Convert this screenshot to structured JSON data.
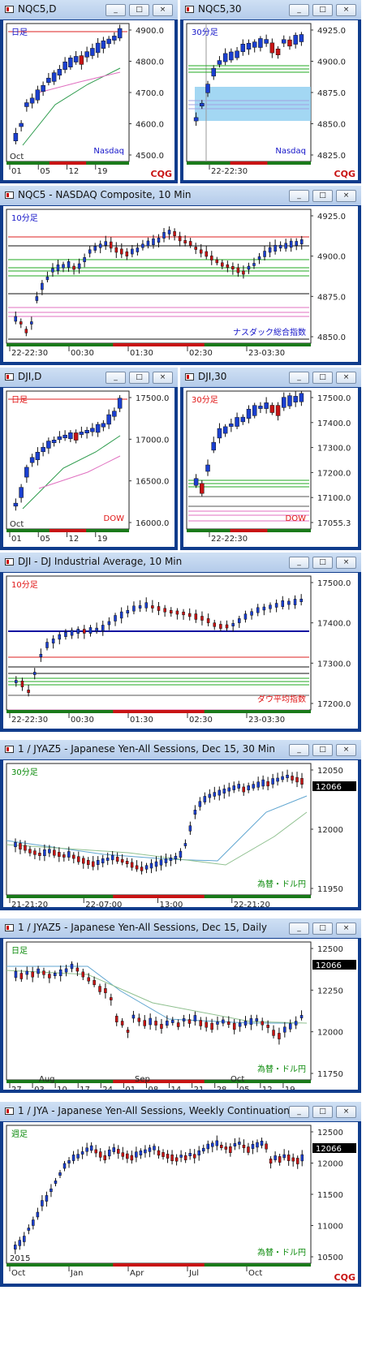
{
  "logo": "CQG",
  "panels": [
    {
      "id": "p1",
      "title": "NQC5,D",
      "corner_label": "日足",
      "corner_color": "#1414c8",
      "market_label": "Nasdaq",
      "market_color": "#1414c8",
      "y_ticks": [
        "4900.0",
        "4800.0",
        "4700.0",
        "4600.0",
        "4500.0"
      ],
      "x_ticks": [
        "01",
        "05",
        "12",
        "19"
      ],
      "x_top": "Oct",
      "price_tag": ""
    },
    {
      "id": "p2",
      "title": "NQC5,30",
      "corner_label": "30分足",
      "corner_color": "#1414c8",
      "market_label": "Nasdaq",
      "market_color": "#1414c8",
      "y_ticks": [
        "4925.0",
        "4900.0",
        "4875.0",
        "4850.0",
        "4825.0"
      ],
      "x_ticks": [
        "22-22:30"
      ],
      "x_top": "",
      "price_tag": ""
    },
    {
      "id": "p3",
      "title": "NQC5 - NASDAQ Composite, 10 Min",
      "corner_label": "10分足",
      "corner_color": "#1414c8",
      "market_label": "ナスダック総合指数",
      "market_color": "#1414c8",
      "y_ticks": [
        "4925.0",
        "4900.0",
        "4875.0",
        "4850.0"
      ],
      "x_ticks": [
        "22-22:30",
        "00:30",
        "01:30",
        "02:30",
        "23-03:30"
      ],
      "x_top": "",
      "price_tag": ""
    },
    {
      "id": "p4",
      "title": "DJI,D",
      "corner_label": "日足",
      "corner_color": "#e01414",
      "market_label": "DOW",
      "market_color": "#e01414",
      "y_ticks": [
        "17500.0",
        "17000.0",
        "16500.0",
        "16000.0"
      ],
      "x_ticks": [
        "01",
        "05",
        "12",
        "19"
      ],
      "x_top": "Oct",
      "price_tag": ""
    },
    {
      "id": "p5",
      "title": "DJI,30",
      "corner_label": "30分足",
      "corner_color": "#e01414",
      "market_label": "DOW",
      "market_color": "#e01414",
      "y_ticks": [
        "17500.0",
        "17400.0",
        "17300.0",
        "17200.0",
        "17100.0",
        "17055.3"
      ],
      "x_ticks": [
        "22-22:30"
      ],
      "x_top": "",
      "price_tag": ""
    },
    {
      "id": "p6",
      "title": "DJI - DJ Industrial Average, 10 Min",
      "corner_label": "10分足",
      "corner_color": "#e01414",
      "market_label": "ダウ平均指数",
      "market_color": "#e01414",
      "y_ticks": [
        "17500.0",
        "17400.0",
        "17300.0",
        "17200.0"
      ],
      "x_ticks": [
        "22-22:30",
        "00:30",
        "01:30",
        "02:30",
        "23-03:30"
      ],
      "x_top": "",
      "price_tag": ""
    },
    {
      "id": "p7",
      "title": "1 / JYAZ5 - Japanese Yen-All Sessions, Dec 15, 30 Min",
      "corner_label": "30分足",
      "corner_color": "#0a8a0a",
      "market_label": "為替・ドル円",
      "market_color": "#0a8a0a",
      "y_ticks": [
        "12050",
        "12000",
        "11950"
      ],
      "x_ticks": [
        "21-21:20",
        "22-07:00",
        "13:00",
        "22-21:20"
      ],
      "x_top": "",
      "price_tag": "12066"
    },
    {
      "id": "p8",
      "title": "1 / JYAZ5 - Japanese Yen-All Sessions, Dec 15, Daily",
      "corner_label": "日足",
      "corner_color": "#0a8a0a",
      "market_label": "為替・ドル円",
      "market_color": "#0a8a0a",
      "y_ticks": [
        "12500",
        "12250",
        "12000",
        "11750"
      ],
      "x_ticks": [
        "27",
        "03",
        "10",
        "17",
        "24",
        "01",
        "08",
        "14",
        "21",
        "28",
        "05",
        "12",
        "19"
      ],
      "x_top_multi": [
        "Aug",
        "Sep",
        "Oct"
      ],
      "price_tag": "12066"
    },
    {
      "id": "p9",
      "title": "1 / JYA - Japanese Yen-All Sessions, Weekly Continuation",
      "corner_label": "週足",
      "corner_color": "#0a8a0a",
      "market_label": "為替・ドル円",
      "market_color": "#0a8a0a",
      "y_ticks": [
        "12500",
        "12000",
        "11500",
        "11000",
        "10500"
      ],
      "x_ticks": [
        "Oct",
        "Jan",
        "Apr",
        "Jul",
        "Oct"
      ],
      "x_top": "2015",
      "price_tag": "12066"
    }
  ],
  "window_buttons": [
    "_",
    "□",
    "×"
  ]
}
